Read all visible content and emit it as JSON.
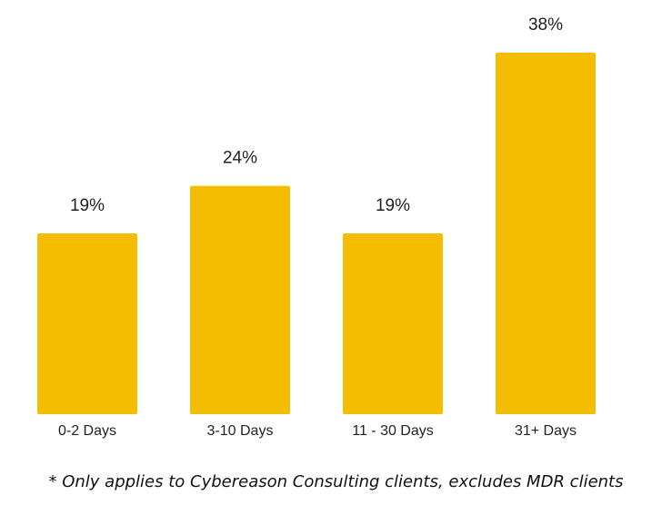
{
  "chart_data": {
    "type": "bar",
    "categories": [
      "0-2 Days",
      "3-10 Days",
      "11 - 30 Days",
      "31+ Days"
    ],
    "values": [
      19,
      24,
      19,
      38
    ],
    "value_labels": [
      "19%",
      "24%",
      "19%",
      "38%"
    ],
    "ylim": [
      0,
      38
    ],
    "title": "",
    "xlabel": "",
    "ylabel": "",
    "grid": false,
    "legend": "none",
    "bar_color": "#F5BD00"
  },
  "footnote": "* Only applies to Cybereason Consulting clients, excludes MDR clients"
}
